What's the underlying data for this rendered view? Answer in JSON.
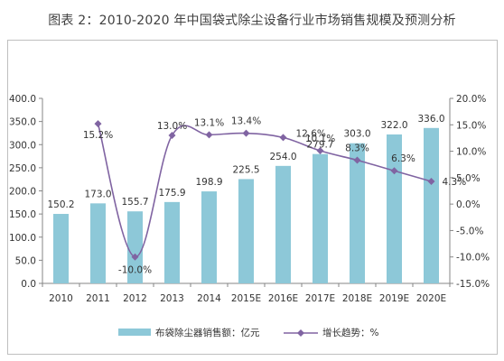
{
  "title": "图表 2：2010-2020 年中国袋式除尘设备行业市场销售规模及预测分析",
  "chart_data": {
    "type": "bar",
    "title": "图表 2：2010-2020 年中国袋式除尘设备行业市场销售规模及预测分析",
    "categories": [
      "2010",
      "2011",
      "2012",
      "2013",
      "2014",
      "2015E",
      "2016E",
      "2017E",
      "2018E",
      "2019E",
      "2020E"
    ],
    "series": [
      {
        "name": "布袋除尘器销售额：亿元",
        "type": "bar",
        "axis": "left",
        "color": "#8dc8d8",
        "values": [
          150.2,
          173.0,
          155.7,
          175.9,
          198.9,
          225.5,
          254.0,
          279.7,
          303.0,
          322.0,
          336.0
        ],
        "labels": [
          "150.2",
          "173.0",
          "155.7",
          "175.9",
          "198.9",
          "225.5",
          "254.0",
          "279.7",
          "303.0",
          "322.0",
          "336.0"
        ]
      },
      {
        "name": "增长趋势：%",
        "type": "line",
        "axis": "right",
        "color": "#8064a2",
        "values": [
          null,
          15.2,
          -10.0,
          13.0,
          13.1,
          13.4,
          12.6,
          10.1,
          8.3,
          6.3,
          4.3
        ],
        "labels": [
          "",
          "15.2%",
          "-10.0%",
          "13.0%",
          "13.1%",
          "13.4%",
          "12.6%",
          "10.1%",
          "8.3%",
          "6.3%",
          "4.3%"
        ]
      }
    ],
    "y_left": {
      "min": 0,
      "max": 400,
      "ticks": [
        0,
        50,
        100,
        150,
        200,
        250,
        300,
        350,
        400
      ],
      "tick_labels": [
        "0.0",
        "50.0",
        "100.0",
        "150.0",
        "200.0",
        "250.0",
        "300.0",
        "350.0",
        "400.0"
      ]
    },
    "y_right": {
      "min": -15,
      "max": 20,
      "ticks": [
        -15,
        -10,
        -5,
        0,
        5,
        10,
        15,
        20
      ],
      "tick_labels": [
        "-15.0%",
        "-10.0%",
        "-5.0%",
        "0.0%",
        "5.0%",
        "10.0%",
        "15.0%",
        "20.0%"
      ]
    },
    "grid": false,
    "legend": "bottom"
  }
}
